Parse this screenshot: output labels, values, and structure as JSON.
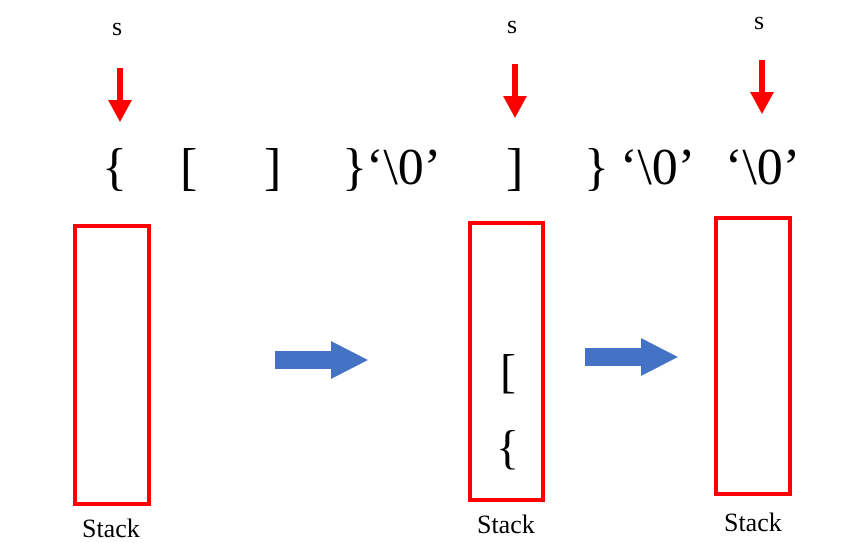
{
  "colors": {
    "pointer_arrow": "#ff0000",
    "stack_border": "#ff0000",
    "transition_arrow": "#4472c4",
    "text": "#000000"
  },
  "panels": [
    {
      "pointer_label": "s",
      "pointer_icon": "down-arrow-icon",
      "expression": [
        "{",
        "[",
        "]",
        "}",
        "‘\\0’"
      ],
      "stack_items": [],
      "stack_label": "Stack"
    },
    {
      "pointer_label": "s",
      "pointer_icon": "down-arrow-icon",
      "expression": [
        "]",
        "}",
        "‘\\0’"
      ],
      "stack_items": [
        "[",
        "{"
      ],
      "stack_label": "Stack"
    },
    {
      "pointer_label": "s",
      "pointer_icon": "down-arrow-icon",
      "expression": [
        "‘\\0’"
      ],
      "stack_items": [],
      "stack_label": "Stack"
    }
  ],
  "transitions": [
    "right-arrow-icon",
    "right-arrow-icon"
  ]
}
